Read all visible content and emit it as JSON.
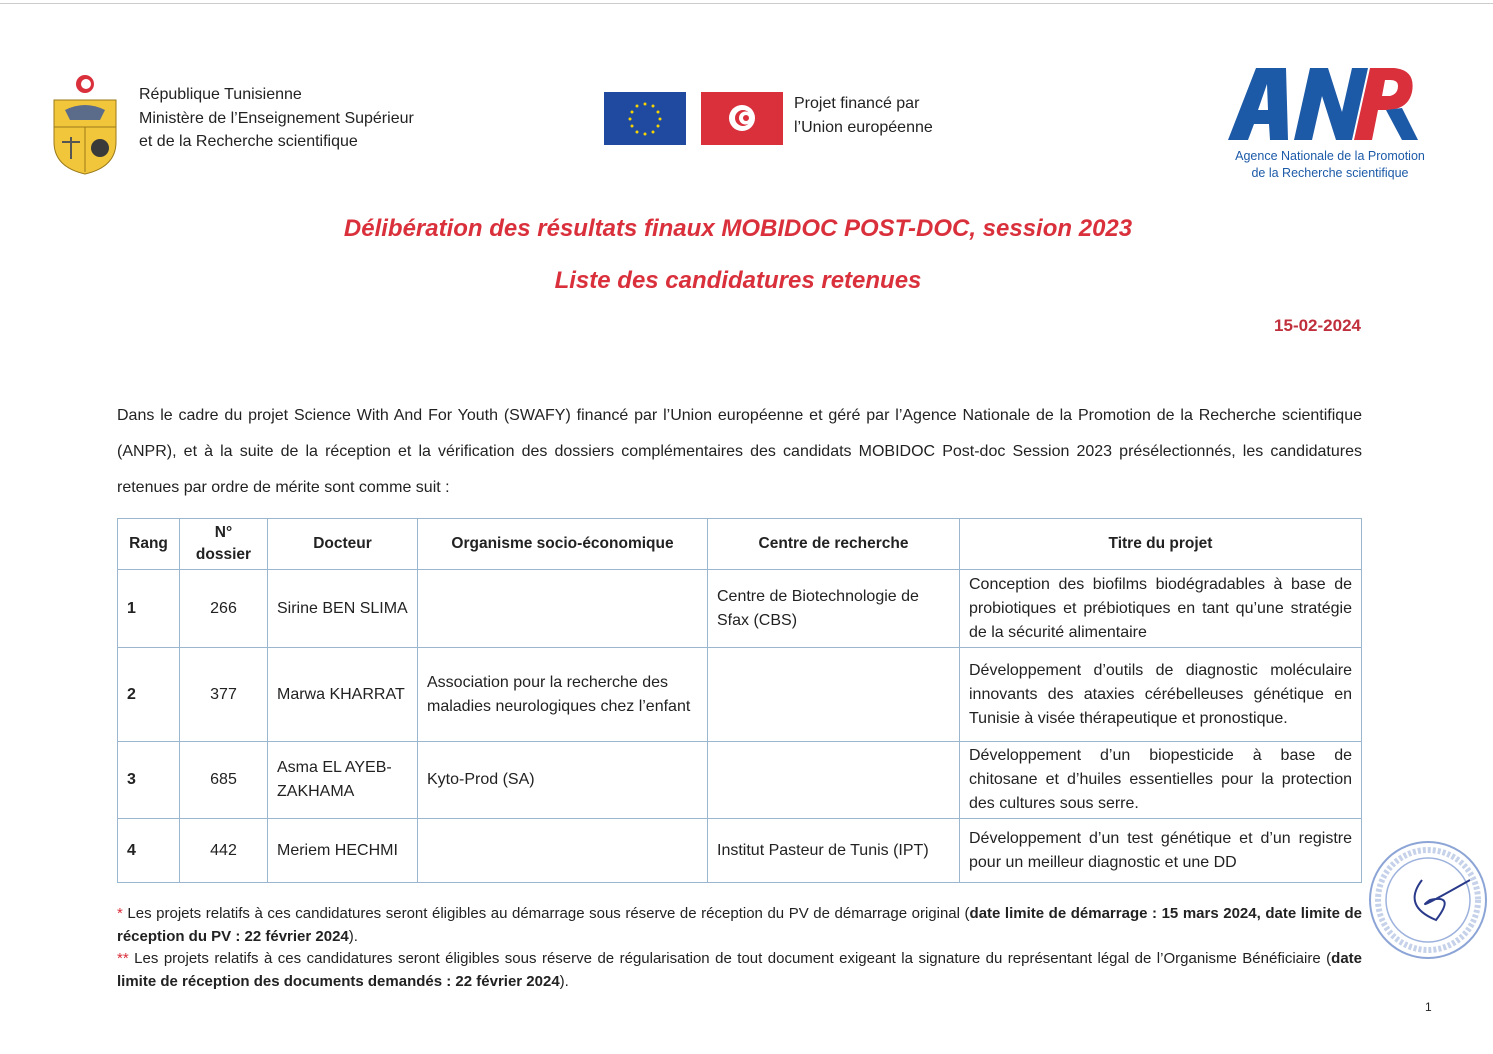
{
  "header": {
    "republic_lines": [
      "République Tunisienne",
      "Ministère de l’Enseignement Supérieur",
      "et de la Recherche scientifique"
    ],
    "eu_lines": [
      "Projet financé par",
      "l’Union européenne"
    ],
    "anpr_logo": "ANPR",
    "anpr_lines": [
      "Agence Nationale de la Promotion",
      "de la Recherche scientifique"
    ],
    "colors": {
      "eu_blue": "#1f4aa0",
      "tunisia_red": "#d9303c",
      "anpr_blue": "#1c5aa8",
      "anpr_red": "#d9303c"
    }
  },
  "title": "Délibération des résultats finaux MOBIDOC POST-DOC, session 2023",
  "subtitle": "Liste des candidatures retenues",
  "date": "15-02-2024",
  "intro": "Dans le cadre du projet Science With And For Youth (SWAFY) financé par l’Union européenne et géré par l’Agence Nationale de la Promotion de la Recherche scientifique (ANPR), et à la suite de la réception et la vérification des dossiers complémentaires des candidats MOBIDOC Post-doc Session 2023 présélectionnés, les candidatures retenues par ordre de mérite sont comme suit :",
  "table": {
    "headers": [
      "Rang",
      "N° dossier",
      "Docteur",
      "Organisme socio-économique",
      "Centre de recherche",
      "Titre du projet"
    ],
    "rows": [
      [
        "1",
        "266",
        "Sirine BEN SLIMA",
        "",
        "Centre de Biotechnologie de Sfax (CBS)",
        "Conception des biofilms biodégradables à base de probiotiques et prébiotiques en tant qu’une stratégie de la sécurité alimentaire"
      ],
      [
        "2",
        "377",
        "Marwa KHARRAT",
        "Association pour la recherche des maladies neurologiques chez l’enfant",
        "",
        "Développement d’outils de diagnostic moléculaire innovants des ataxies cérébelleuses génétique en Tunisie à visée thérapeutique et pronostique."
      ],
      [
        "3",
        "685",
        "Asma EL AYEB-ZAKHAMA",
        "Kyto-Prod (SA)",
        "",
        "Développement d’un biopesticide à base de chitosane et d’huiles essentielles pour la protection des cultures sous serre."
      ],
      [
        "4",
        "442",
        "Meriem HECHMI",
        "",
        "Institut Pasteur de Tunis (IPT)",
        "Développement d’un test génétique et d’un registre pour un meilleur diagnostic et une DD"
      ]
    ]
  },
  "notes": {
    "n1_mark": "*",
    "n1_text": " Les projets relatifs à ces candidatures seront éligibles au démarrage sous réserve de réception du PV de démarrage original (",
    "n1_bold": "date limite de démarrage : 15 mars 2024, date limite de réception du PV : 22 février 2024",
    "n1_end": ").",
    "n2_mark": "**",
    "n2_text": " Les projets relatifs à ces candidatures seront éligibles sous réserve de régularisation de tout document exigeant la signature du représentant légal de l’Organisme Bénéficiaire (",
    "n2_bold": "date limite de réception des documents demandés : 22 février 2024",
    "n2_end": ")."
  },
  "stamp_text": "RÉPUBLIQUE TUNISIENNE * MINISTÈRE DE L'ENSEIGNEMENT SUPÉRIEUR ET DE LA RECHERCHE SCIENTIFIQUE",
  "page_number": "1"
}
